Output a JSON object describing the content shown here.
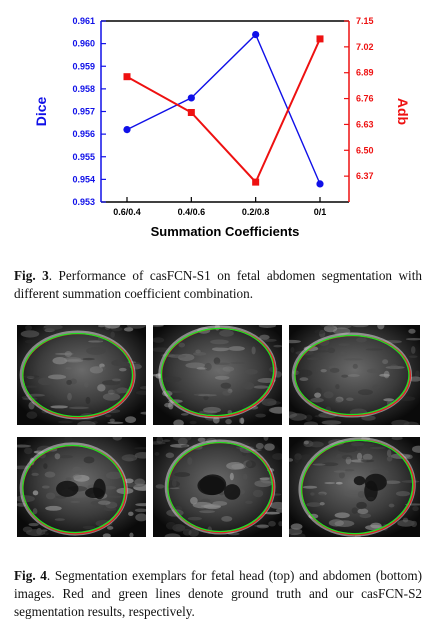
{
  "chart_data": {
    "type": "line",
    "xlabel": "Summation Coefficients",
    "categories": [
      "0.6/0.4",
      "0.4/0.6",
      "0.2/0.8",
      "0/1"
    ],
    "series": [
      {
        "name": "Dice",
        "axis": "left",
        "color": "#1010e8",
        "marker": "circle",
        "values": [
          0.9562,
          0.9576,
          0.9604,
          0.9538
        ]
      },
      {
        "name": "Adb",
        "axis": "right",
        "color": "#ee1111",
        "marker": "square",
        "values": [
          6.87,
          6.69,
          6.34,
          7.06
        ]
      }
    ],
    "y_left": {
      "label": "Dice",
      "ylim": [
        0.953,
        0.961
      ],
      "ticks": [
        "0.953",
        "0.954",
        "0.955",
        "0.956",
        "0.957",
        "0.958",
        "0.959",
        "0.960",
        "0.961"
      ]
    },
    "y_right": {
      "label": "Adb",
      "ylim": [
        6.24,
        7.15
      ],
      "ticks": [
        "6.37",
        "6.50",
        "6.63",
        "6.76",
        "6.89",
        "7.02",
        "7.15"
      ]
    },
    "grid": false
  },
  "fig3_caption": {
    "label": "Fig. 3",
    "text": ". Performance of casFCN-S1 on fetal abdomen segmentation with different summation coefficient combination."
  },
  "fig4_caption": {
    "label": "Fig. 4",
    "text": ". Segmentation exemplars for fetal head (top) and abdomen (bottom) images. Red and green lines denote ground truth and our casFCN-S2 segmentation results, respectively."
  },
  "colors": {
    "ground_truth": "#e02020",
    "segmentation": "#22dd22"
  }
}
